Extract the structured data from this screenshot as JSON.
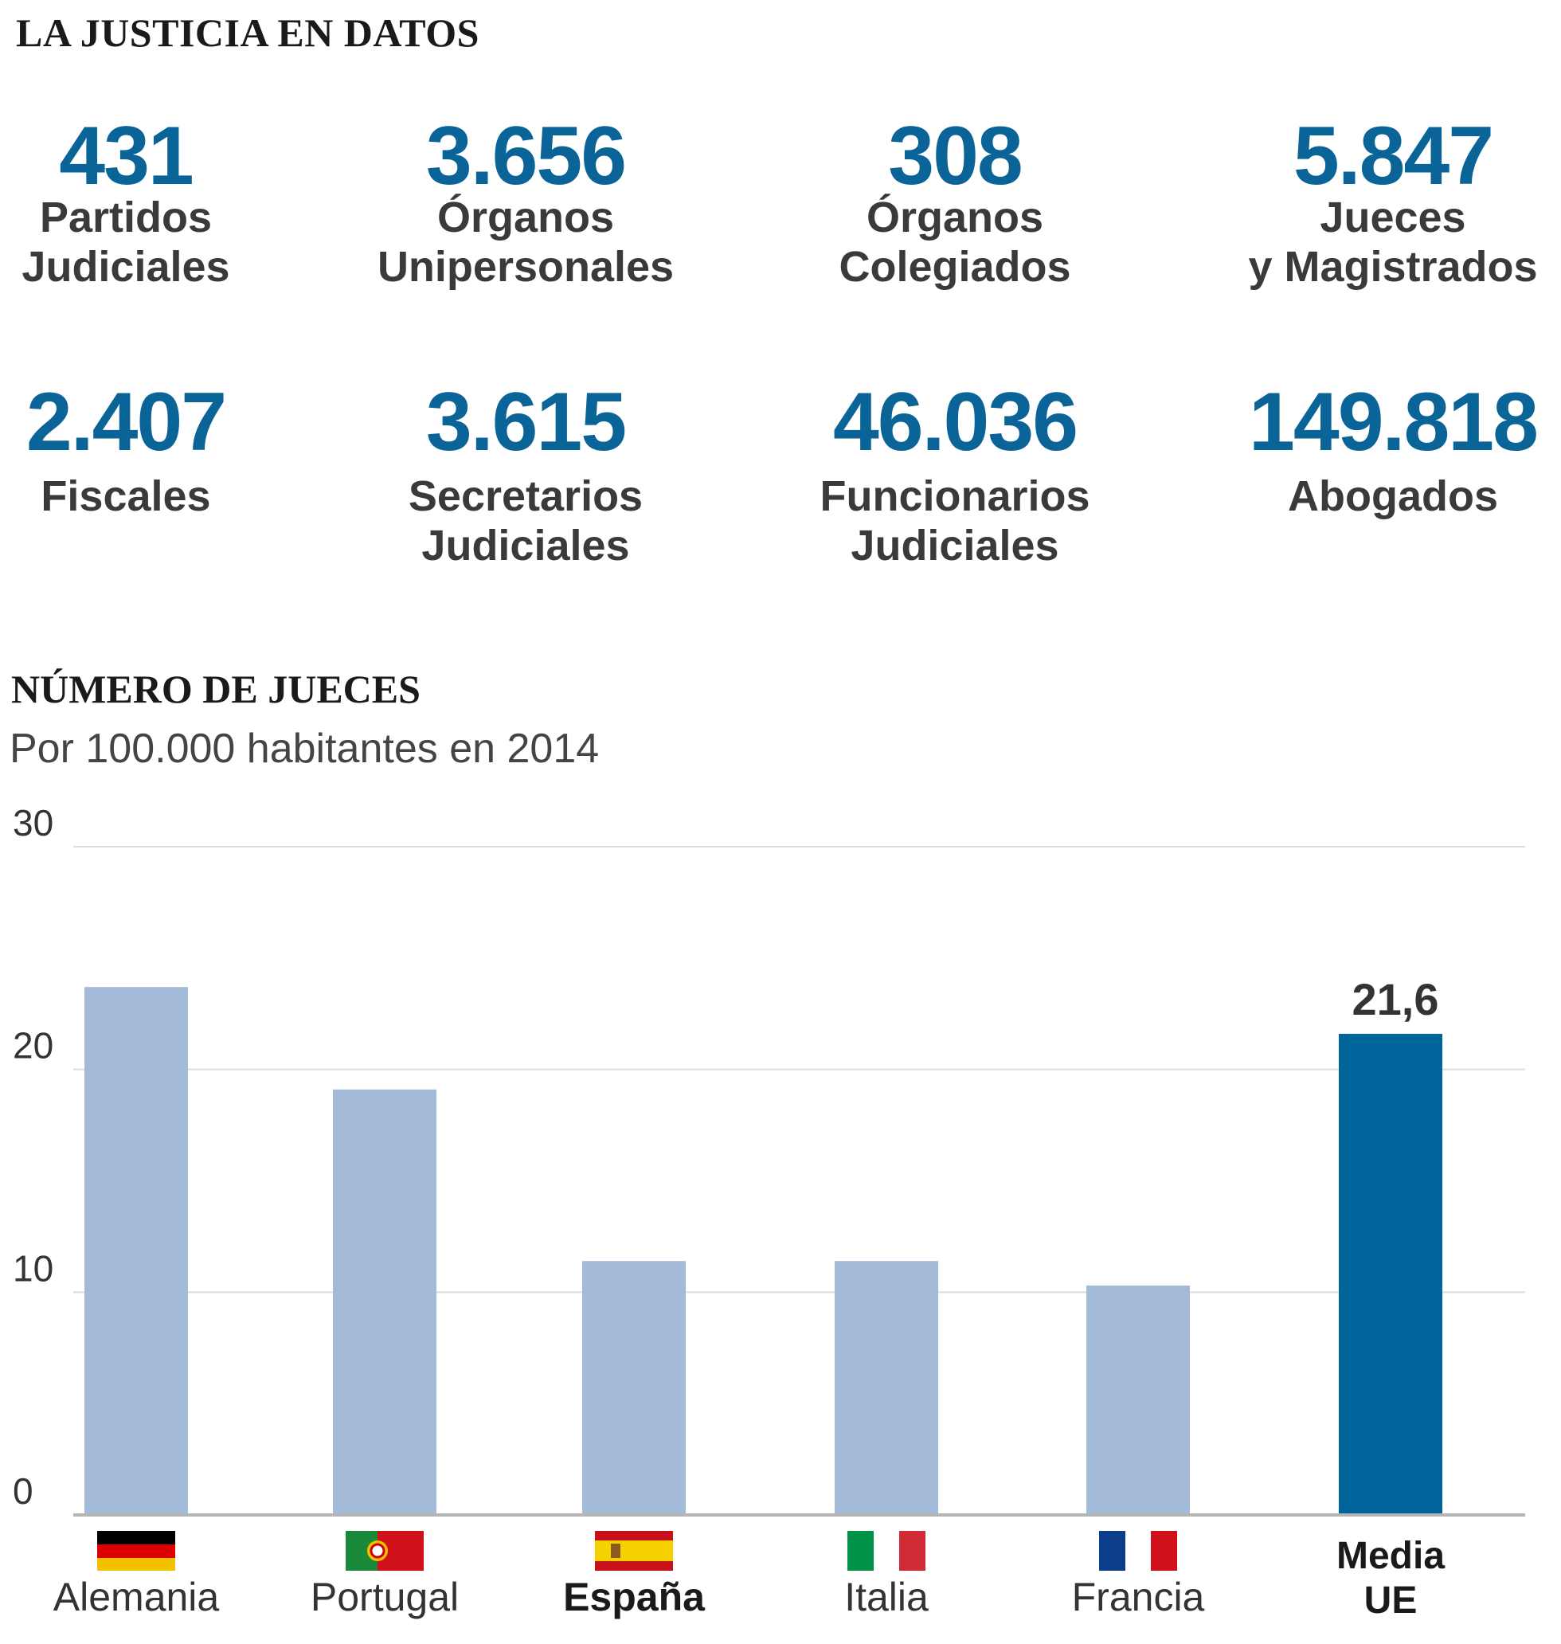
{
  "header": {
    "title": "LA JUSTICIA EN DATOS"
  },
  "stats": [
    {
      "value": "431",
      "label": [
        "Partidos",
        "Judiciales"
      ]
    },
    {
      "value": "3.656",
      "label": [
        "Órganos",
        "Unipersonales"
      ]
    },
    {
      "value": "308",
      "label": [
        "Órganos",
        "Colegiados"
      ]
    },
    {
      "value": "5.847",
      "label": [
        "Jueces",
        "y Magistrados"
      ]
    },
    {
      "value": "2.407",
      "label": [
        "Fiscales",
        ""
      ]
    },
    {
      "value": "3.615",
      "label": [
        "Secretarios",
        "Judiciales"
      ]
    },
    {
      "value": "46.036",
      "label": [
        "Funcionarios",
        "Judiciales"
      ]
    },
    {
      "value": "149.818",
      "label": [
        "Abogados",
        ""
      ]
    }
  ],
  "colors": {
    "accent": "#00659a",
    "bar": "#a3bbd8"
  },
  "chart_data": {
    "type": "bar",
    "title": "NÚMERO DE JUECES",
    "subtitle": "Por 100.000 habitantes en 2014",
    "categories": [
      "Alemania",
      "Portugal",
      "España",
      "Italia",
      "Francia",
      "Media UE"
    ],
    "category_lines": [
      [
        "Alemania"
      ],
      [
        "Portugal"
      ],
      [
        "España"
      ],
      [
        "Italia"
      ],
      [
        "Francia"
      ],
      [
        "Media",
        "UE"
      ]
    ],
    "flags": [
      "germany-flag",
      "portugal-flag",
      "spain-flag",
      "italy-flag",
      "france-flag",
      null
    ],
    "bold": [
      false,
      false,
      true,
      false,
      false,
      true
    ],
    "highlight": [
      false,
      false,
      false,
      false,
      false,
      true
    ],
    "values": [
      23.7,
      19.1,
      11.4,
      11.4,
      10.3,
      21.6
    ],
    "data_labels": [
      null,
      null,
      null,
      null,
      null,
      "21,6"
    ],
    "yticks": [
      "0",
      "10",
      "20",
      "30"
    ],
    "ylim": [
      0,
      30
    ],
    "grid": true,
    "legend": "none"
  }
}
